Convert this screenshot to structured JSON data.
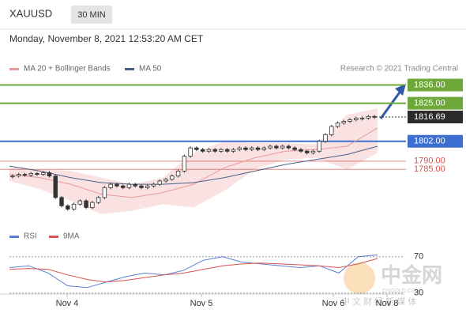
{
  "header": {
    "symbol": "XAUUSD",
    "timeframe": "30 MIN",
    "timestamp": "Monday, November 8, 2021 12:53:20 AM CET",
    "source": "Research © 2021 Trading Central"
  },
  "watermark": {
    "name": "中金网",
    "site": "CNGOLD.COM",
    "slogan": "中 文 财 经 新 媒 体"
  },
  "chart_data": {
    "type": "candlestick",
    "color": "#333333",
    "x_labels": [
      "Nov 4",
      "Nov 5",
      "Nov 6",
      "Nov 8"
    ],
    "ylim": [
      1756,
      1842
    ],
    "close": [
      1781,
      1782,
      1781.5,
      1782.5,
      1782,
      1783,
      1781,
      1768,
      1763,
      1761,
      1764,
      1766,
      1762,
      1765,
      1768,
      1774,
      1776,
      1775,
      1774,
      1776,
      1775,
      1774,
      1775,
      1776,
      1778,
      1779,
      1781,
      1784,
      1793,
      1798,
      1797,
      1796,
      1797,
      1796,
      1797,
      1796,
      1797,
      1798,
      1797,
      1798,
      1797,
      1798,
      1799,
      1798,
      1799,
      1798,
      1797,
      1796,
      1795,
      1796,
      1802,
      1806,
      1811,
      1813,
      1814,
      1815,
      1816,
      1816,
      1817,
      1816.69
    ],
    "series": [
      {
        "name": "MA 20 + Bollinger Bands",
        "color": "#e89a9a",
        "values": [
          1782,
          1780,
          1776,
          1770,
          1768,
          1771,
          1776,
          1786,
          1792,
          1796,
          1797,
          1799,
          1810
        ],
        "upper": [
          1786,
          1785,
          1784,
          1780,
          1776,
          1780,
          1795,
          1802,
          1801,
          1801,
          1800,
          1818,
          1822
        ],
        "lower": [
          1778,
          1773,
          1766,
          1758,
          1760,
          1764,
          1762,
          1772,
          1785,
          1791,
          1792,
          1785,
          1795
        ]
      },
      {
        "name": "MA 50",
        "color": "#4a5f86",
        "values": [
          1787,
          1784,
          1780,
          1777,
          1776,
          1776,
          1777,
          1780,
          1784,
          1788,
          1791,
          1794,
          1799
        ]
      }
    ],
    "levels": [
      {
        "value": 1836,
        "label": "1836.00",
        "color": "#6ea83a",
        "style": "box"
      },
      {
        "value": 1825,
        "label": "1825.00",
        "color": "#6ea83a",
        "style": "box"
      },
      {
        "value": 1816.69,
        "label": "1816.69",
        "color": "#2b2b2b",
        "style": "current"
      },
      {
        "value": 1802,
        "label": "1802.00",
        "color": "#3d6fd1",
        "style": "box"
      },
      {
        "value": 1790,
        "label": "1790.00",
        "color": "#d9534f",
        "style": "text"
      },
      {
        "value": 1785,
        "label": "1785.00",
        "color": "#d9534f",
        "style": "text"
      }
    ],
    "indicator": {
      "ylim": [
        28,
        88
      ],
      "yticks": [
        70,
        30
      ],
      "series": [
        {
          "name": "RSI",
          "color": "#5b7fd6",
          "values": [
            58,
            60,
            52,
            38,
            36,
            42,
            48,
            52,
            50,
            55,
            66,
            70,
            64,
            62,
            60,
            58,
            60,
            52,
            70,
            72
          ]
        },
        {
          "name": "9MA",
          "color": "#d9534f",
          "values": [
            56,
            57,
            56,
            50,
            45,
            42,
            44,
            47,
            50,
            52,
            56,
            60,
            62,
            63,
            62,
            61,
            60,
            58,
            62,
            68
          ]
        }
      ]
    }
  }
}
